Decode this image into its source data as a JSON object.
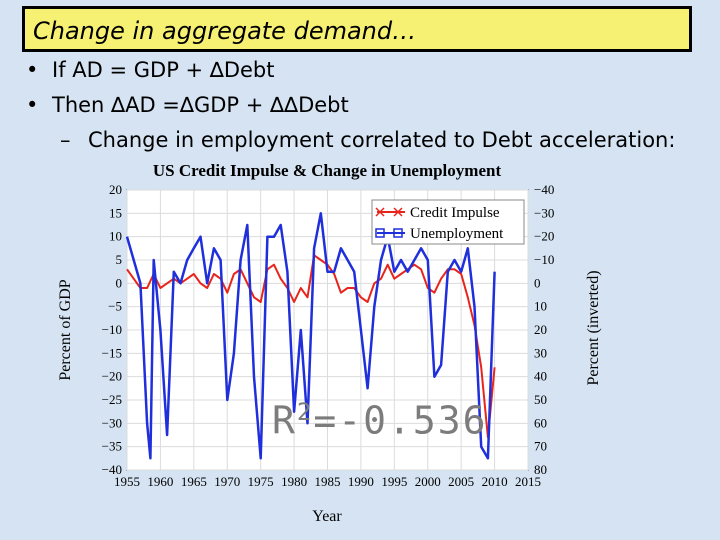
{
  "slide": {
    "title": "Change in aggregate demand…",
    "bullets": [
      "If AD = GDP + ∆Debt",
      "Then ∆AD =∆GDP + ∆∆Debt"
    ],
    "subbullet": "Change in employment correlated to Debt acceleration:",
    "r2_label": "R",
    "r2_sup": "2",
    "r2_value": "=-0.536"
  },
  "colors": {
    "credit_impulse": "#e8251c",
    "unemployment": "#1f2fdc",
    "title_box": "#f6f073",
    "background": "#d5e3f2"
  },
  "chart_data": {
    "type": "line",
    "title": "US Credit Impulse & Change in Unemployment",
    "xlabel": "Year",
    "ylabel_left": "Percent of GDP",
    "ylabel_right": "Percent (inverted)",
    "xlim": [
      1955,
      2015
    ],
    "xticks": [
      "1955",
      "1960",
      "1965",
      "1970",
      "1975",
      "1980",
      "1985",
      "1990",
      "1995",
      "2000",
      "2005",
      "2010",
      "2015"
    ],
    "ylim_left": [
      -40,
      20
    ],
    "yticks_left": [
      "20",
      "15",
      "10",
      "5",
      "0",
      "−5",
      "−10",
      "−15",
      "−20",
      "−25",
      "−30",
      "−35",
      "−40"
    ],
    "ylim_right_inverted": [
      -40,
      80
    ],
    "yticks_right": [
      "−40",
      "−30",
      "−20",
      "−10",
      "0",
      "10",
      "20",
      "30",
      "40",
      "50",
      "60",
      "70",
      "80"
    ],
    "grid": true,
    "legend_position": "top-right",
    "series": [
      {
        "name": "Credit Impulse",
        "axis": "left",
        "color": "#e8251c",
        "marker": "x",
        "x": [
          1955,
          1956,
          1957,
          1958,
          1959,
          1960,
          1961,
          1962,
          1963,
          1964,
          1965,
          1966,
          1967,
          1968,
          1969,
          1970,
          1971,
          1972,
          1973,
          1974,
          1975,
          1976,
          1977,
          1978,
          1979,
          1980,
          1981,
          1982,
          1983,
          1984,
          1985,
          1986,
          1987,
          1988,
          1989,
          1990,
          1991,
          1992,
          1993,
          1994,
          1995,
          1996,
          1997,
          1998,
          1999,
          2000,
          2001,
          2002,
          2003,
          2004,
          2005,
          2006,
          2007,
          2008,
          2009,
          2010
        ],
        "y": [
          3,
          1,
          -1,
          -1,
          2,
          -1,
          0,
          1,
          0,
          1,
          2,
          0,
          -1,
          2,
          1,
          -2,
          2,
          3,
          0,
          -3,
          -4,
          3,
          4,
          1,
          -1,
          -4,
          -1,
          -3,
          6,
          5,
          4,
          2,
          -2,
          -1,
          -1,
          -3,
          -4,
          0,
          1,
          4,
          1,
          2,
          3,
          4,
          3,
          -1,
          -2,
          1,
          3,
          3,
          2,
          -3,
          -9,
          -18,
          -33,
          -18
        ]
      },
      {
        "name": "Unemployment",
        "axis": "right",
        "color": "#1f2fdc",
        "marker": "square",
        "x": [
          1955,
          1956,
          1957,
          1958,
          1958.5,
          1959,
          1960,
          1961,
          1962,
          1963,
          1964,
          1965,
          1966,
          1967,
          1968,
          1969,
          1970,
          1971,
          1972,
          1973,
          1974,
          1975,
          1976,
          1977,
          1978,
          1979,
          1980,
          1981,
          1982,
          1983,
          1984,
          1985,
          1986,
          1987,
          1988,
          1989,
          1990,
          1991,
          1992,
          1993,
          1994,
          1995,
          1996,
          1997,
          1998,
          1999,
          2000,
          2001,
          2002,
          2003,
          2004,
          2005,
          2006,
          2007,
          2008,
          2009,
          2010
        ],
        "y": [
          -20,
          -10,
          0,
          60,
          75,
          -10,
          20,
          65,
          -5,
          0,
          -10,
          -15,
          -20,
          0,
          -15,
          -10,
          50,
          30,
          -10,
          -25,
          40,
          75,
          -20,
          -20,
          -25,
          -5,
          55,
          20,
          60,
          -15,
          -30,
          -5,
          -5,
          -15,
          -10,
          -5,
          20,
          45,
          10,
          -10,
          -20,
          -5,
          -10,
          -5,
          -10,
          -15,
          -10,
          40,
          35,
          -5,
          -10,
          -5,
          -15,
          10,
          70,
          75,
          -5
        ]
      }
    ]
  }
}
